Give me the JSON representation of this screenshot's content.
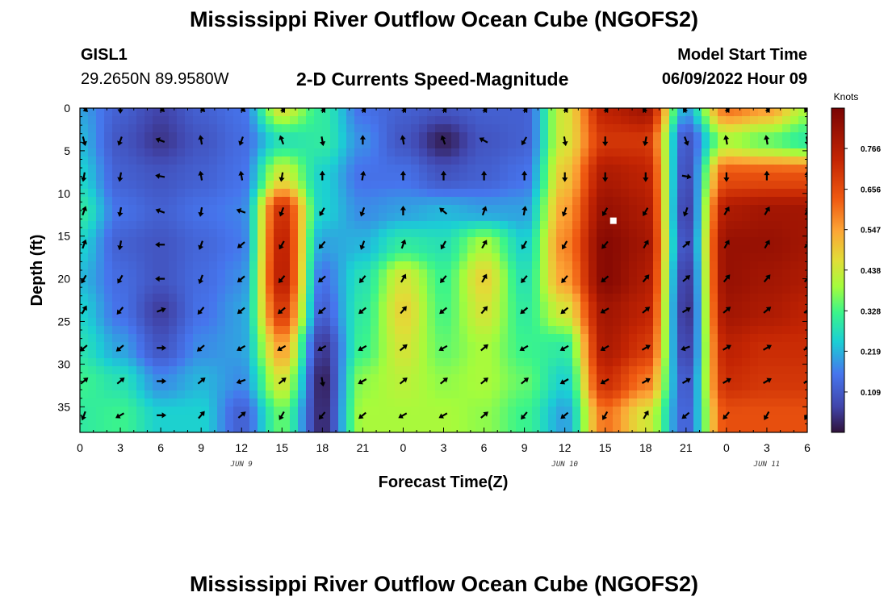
{
  "header": {
    "title": "Mississippi River Outflow Ocean Cube (NGOFS2)",
    "station_id": "GISL1",
    "station_coords": "29.2650N  89.9580W",
    "subtitle": "2-D Currents Speed-Magnitude",
    "model_start_label": "Model Start Time",
    "model_start_value": "06/09/2022 Hour 09"
  },
  "footer": {
    "title": "Mississippi River Outflow Ocean Cube (NGOFS2)"
  },
  "chart_data": {
    "type": "heatmap",
    "title": "2-D Currents Speed-Magnitude",
    "xlabel": "Forecast Time(Z)",
    "ylabel": "Depth (ft)",
    "x_hours_from_start": [
      0,
      3,
      6,
      9,
      12,
      15,
      18,
      21,
      24,
      27,
      30,
      33,
      36,
      39,
      42,
      45,
      48,
      51,
      54
    ],
    "x_tick_labels": [
      "0",
      "3",
      "6",
      "9",
      "12",
      "15",
      "18",
      "21",
      "0",
      "3",
      "6",
      "9",
      "12",
      "15",
      "18",
      "21",
      "0",
      "3",
      "6"
    ],
    "x_date_labels": [
      {
        "label": "JUN 9",
        "hour": 12
      },
      {
        "label": "JUN 10",
        "hour": 36
      },
      {
        "label": "JUN 11",
        "hour": 51
      }
    ],
    "y_ticks": [
      0,
      5,
      10,
      15,
      20,
      25,
      30,
      35
    ],
    "ylim": [
      0,
      38
    ],
    "y_inverted": true,
    "xlim": [
      0,
      54
    ],
    "colorbar": {
      "unit": "Knots",
      "ticks": [
        0.109,
        0.219,
        0.328,
        0.438,
        0.547,
        0.656,
        0.766
      ],
      "range": [
        0.0,
        0.875
      ]
    },
    "depths": [
      0,
      3.8,
      8,
      12.1,
      16,
      20,
      23.7,
      28.1,
      32,
      36
    ],
    "speed_grid": [
      [
        0.2,
        0.12,
        0.07,
        0.12,
        0.15,
        0.45,
        0.3,
        0.15,
        0.12,
        0.1,
        0.12,
        0.12,
        0.45,
        0.75,
        0.8,
        0.2,
        0.6,
        0.55,
        0.4
      ],
      [
        0.22,
        0.1,
        0.05,
        0.1,
        0.14,
        0.28,
        0.3,
        0.18,
        0.1,
        0.02,
        0.1,
        0.12,
        0.45,
        0.7,
        0.7,
        0.1,
        0.4,
        0.35,
        0.3
      ],
      [
        0.25,
        0.12,
        0.1,
        0.12,
        0.15,
        0.45,
        0.25,
        0.15,
        0.15,
        0.1,
        0.12,
        0.15,
        0.5,
        0.78,
        0.75,
        0.08,
        0.65,
        0.65,
        0.65
      ],
      [
        0.3,
        0.15,
        0.12,
        0.15,
        0.17,
        0.72,
        0.25,
        0.18,
        0.2,
        0.22,
        0.2,
        0.2,
        0.55,
        0.82,
        0.78,
        0.06,
        0.78,
        0.8,
        0.8
      ],
      [
        0.25,
        0.12,
        0.1,
        0.13,
        0.16,
        0.75,
        0.2,
        0.22,
        0.3,
        0.28,
        0.4,
        0.25,
        0.58,
        0.85,
        0.8,
        0.08,
        0.82,
        0.82,
        0.8
      ],
      [
        0.22,
        0.14,
        0.1,
        0.14,
        0.18,
        0.76,
        0.15,
        0.28,
        0.45,
        0.32,
        0.48,
        0.28,
        0.55,
        0.85,
        0.78,
        0.05,
        0.82,
        0.8,
        0.78
      ],
      [
        0.25,
        0.15,
        0.06,
        0.15,
        0.2,
        0.7,
        0.12,
        0.3,
        0.48,
        0.33,
        0.45,
        0.3,
        0.45,
        0.8,
        0.75,
        0.04,
        0.8,
        0.78,
        0.75
      ],
      [
        0.28,
        0.2,
        0.1,
        0.18,
        0.2,
        0.55,
        0.05,
        0.32,
        0.45,
        0.35,
        0.4,
        0.32,
        0.3,
        0.78,
        0.7,
        0.06,
        0.75,
        0.72,
        0.72
      ],
      [
        0.32,
        0.28,
        0.18,
        0.22,
        0.18,
        0.45,
        0.02,
        0.38,
        0.42,
        0.38,
        0.4,
        0.35,
        0.25,
        0.72,
        0.6,
        0.1,
        0.72,
        0.7,
        0.7
      ],
      [
        0.3,
        0.32,
        0.25,
        0.25,
        0.12,
        0.35,
        0.03,
        0.4,
        0.4,
        0.4,
        0.38,
        0.32,
        0.2,
        0.6,
        0.45,
        0.12,
        0.65,
        0.65,
        0.65
      ]
    ],
    "direction_grid_deg": [
      [
        45,
        90,
        45,
        45,
        45,
        60,
        60,
        60,
        60,
        60,
        60,
        60,
        60,
        60,
        120,
        120,
        60,
        60,
        120
      ],
      [
        75,
        110,
        200,
        260,
        110,
        250,
        80,
        270,
        260,
        250,
        210,
        120,
        80,
        90,
        100,
        70,
        260,
        260,
        80
      ],
      [
        100,
        100,
        190,
        260,
        260,
        100,
        270,
        280,
        270,
        270,
        270,
        270,
        90,
        90,
        90,
        10,
        90,
        270,
        270
      ],
      [
        290,
        100,
        200,
        100,
        200,
        110,
        120,
        110,
        270,
        220,
        290,
        280,
        110,
        120,
        120,
        110,
        300,
        300,
        300
      ],
      [
        290,
        100,
        180,
        110,
        140,
        120,
        130,
        110,
        290,
        120,
        300,
        120,
        120,
        130,
        300,
        320,
        300,
        300,
        310
      ],
      [
        120,
        120,
        180,
        110,
        140,
        130,
        140,
        130,
        300,
        130,
        300,
        130,
        130,
        140,
        310,
        320,
        310,
        310,
        310
      ],
      [
        300,
        130,
        340,
        130,
        140,
        140,
        140,
        140,
        310,
        140,
        310,
        140,
        140,
        150,
        320,
        330,
        320,
        320,
        320
      ],
      [
        140,
        140,
        360,
        140,
        150,
        150,
        150,
        150,
        320,
        150,
        320,
        150,
        150,
        150,
        330,
        160,
        330,
        330,
        330
      ],
      [
        320,
        320,
        360,
        320,
        160,
        320,
        80,
        150,
        320,
        320,
        320,
        320,
        150,
        150,
        330,
        330,
        330,
        330,
        330
      ],
      [
        110,
        150,
        360,
        310,
        320,
        120,
        130,
        140,
        150,
        150,
        320,
        130,
        140,
        120,
        300,
        140,
        130,
        120,
        120
      ]
    ],
    "marker": {
      "hour": 39.6,
      "depth": 13.2
    }
  }
}
